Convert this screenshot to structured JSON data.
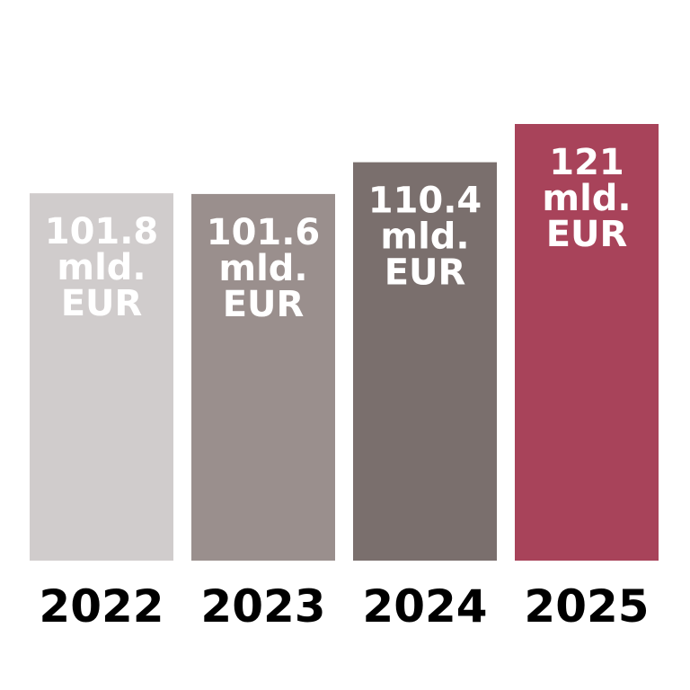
{
  "chart_data": {
    "type": "bar",
    "categories": [
      "2022",
      "2023",
      "2024",
      "2025"
    ],
    "values": [
      101.8,
      101.6,
      110.4,
      121
    ],
    "data_labels": [
      [
        "101.8",
        "mld.",
        "EUR"
      ],
      [
        "101.6",
        "mld.",
        "EUR"
      ],
      [
        "110.4",
        "mld.",
        "EUR"
      ],
      [
        "121",
        "mld.",
        "EUR"
      ]
    ],
    "colors": [
      "#d0cccc",
      "#9a8f8d",
      "#7a6f6d",
      "#a8435a"
    ],
    "unit": "mld. EUR",
    "ylim": [
      0,
      121
    ],
    "grid": false,
    "title": "",
    "xlabel": "",
    "ylabel": ""
  }
}
